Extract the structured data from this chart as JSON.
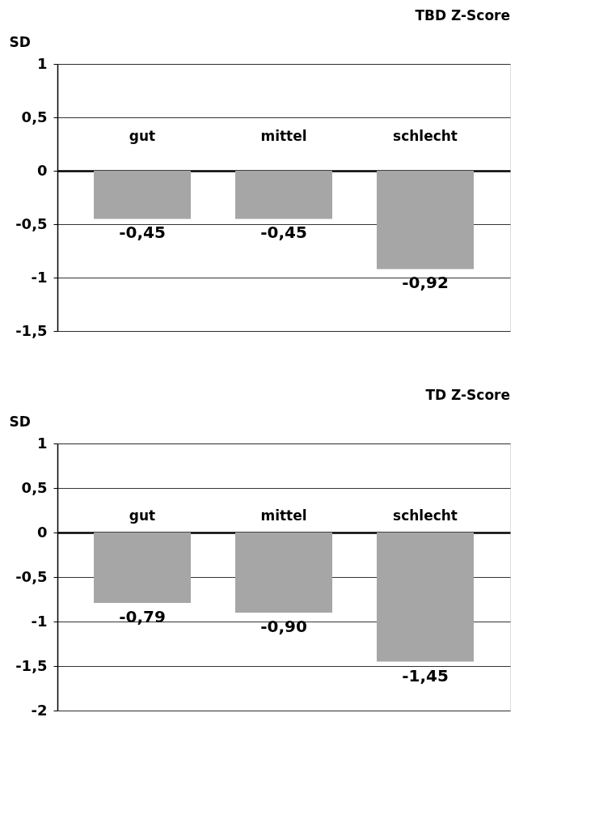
{
  "chart_data": [
    {
      "type": "bar",
      "title": "TBD Z-Score",
      "ylabel": "SD",
      "categories": [
        "gut",
        "mittel",
        "schlecht"
      ],
      "values": [
        -0.45,
        -0.45,
        -0.92
      ],
      "color": "#a6a6a6",
      "value_labels": [
        "-0,45",
        "-0,45",
        "-0,92"
      ],
      "ylim": [
        -1.5,
        1
      ],
      "yticks": [
        {
          "value": -1.5,
          "label": "-1,5"
        },
        -1,
        {
          "value": -0.5,
          "label": "-0,5"
        },
        0,
        {
          "value": 0.5,
          "label": "0,5"
        },
        1
      ],
      "grid": "y"
    },
    {
      "type": "bar",
      "title": "TD Z-Score",
      "ylabel": "SD",
      "categories": [
        "gut",
        "mittel",
        "schlecht"
      ],
      "values": [
        -0.79,
        -0.9,
        -1.45
      ],
      "color": "#a6a6a6",
      "value_labels": [
        "-0,79",
        "-0,90",
        "-1,45"
      ],
      "ylim": [
        -2,
        1
      ],
      "yticks": [
        -2,
        {
          "value": -1.5,
          "label": "-1,5"
        },
        -1,
        {
          "value": -0.5,
          "label": "-0,5"
        },
        0,
        {
          "value": 0.5,
          "label": "0,5"
        },
        1
      ],
      "grid": "y"
    }
  ]
}
